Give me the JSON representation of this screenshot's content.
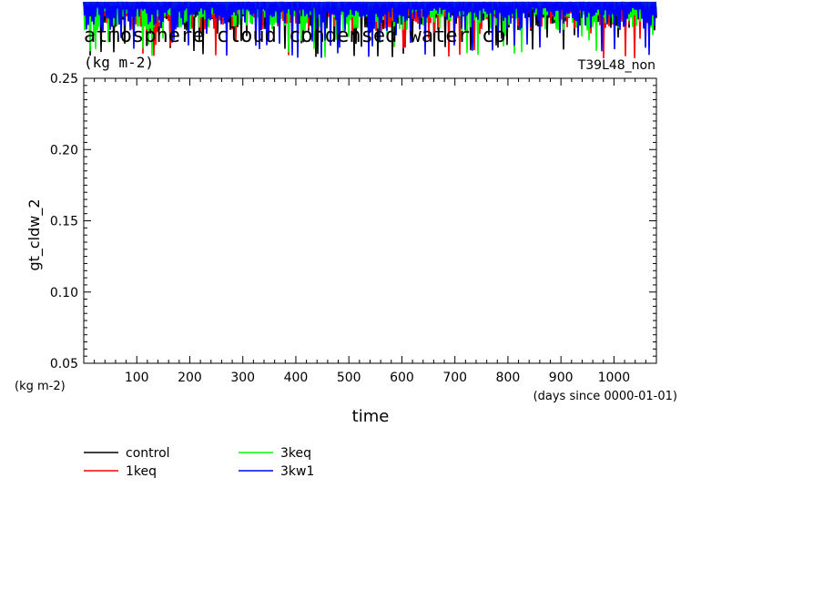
{
  "chart_data": {
    "type": "line",
    "title": "atmosphere cloud condensed water co",
    "subtitle": "(kg m-2)",
    "experiment": "T39L48_non",
    "ylabel": "gt_cldw_2",
    "yunit": "(kg m-2)",
    "xlabel": "time",
    "xunit": "(days since 0000-01-01)",
    "xlim": [
      0,
      1080
    ],
    "ylim": [
      0.05,
      0.25
    ],
    "xticks": [
      "100",
      "200",
      "300",
      "400",
      "500",
      "600",
      "700",
      "800",
      "900",
      "1000"
    ],
    "yticks": [
      "0.05",
      "0.10",
      "0.15",
      "0.20",
      "0.25"
    ],
    "grid": false,
    "legend_position": "bottom-left",
    "series": [
      {
        "name": "control",
        "color": "#000000"
      },
      {
        "name": "1keq",
        "color": "#ff0000"
      },
      {
        "name": "3keq",
        "color": "#00ff00"
      },
      {
        "name": "3kw1",
        "color": "#0000ff"
      }
    ]
  }
}
